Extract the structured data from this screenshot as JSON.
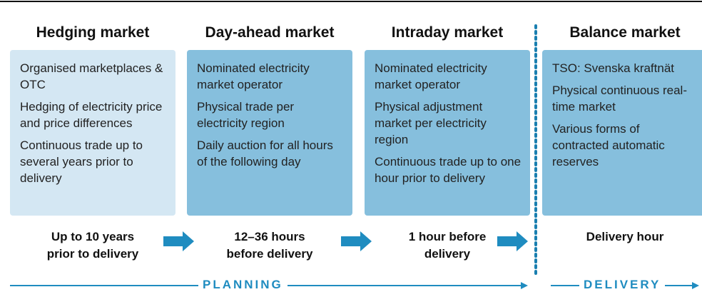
{
  "columns": [
    {
      "title": "Hedging market",
      "items": [
        "Organised marketplaces & OTC",
        "Hedging of electricity price and price differences",
        "Continuous trade up to several years prior to delivery"
      ],
      "timing": "Up to 10 years prior to delivery"
    },
    {
      "title": "Day-ahead market",
      "items": [
        "Nominated electricity market operator",
        "Physical trade per electricity region",
        "Daily auction for all hours of the following day"
      ],
      "timing": "12–36 hours before delivery"
    },
    {
      "title": "Intraday market",
      "items": [
        "Nominated electricity market operator",
        "Physical adjustment market per electricity region",
        "Continuous trade up to one hour prior to delivery"
      ],
      "timing": "1 hour before delivery"
    },
    {
      "title": "Balance market",
      "items": [
        "TSO: Svenska kraftnät",
        "Physical continuous real-time market",
        "Various forms of contracted automatic reserves"
      ],
      "timing": "Delivery hour"
    }
  ],
  "phases": {
    "planning": "PLANNING",
    "delivery": "DELIVERY"
  }
}
